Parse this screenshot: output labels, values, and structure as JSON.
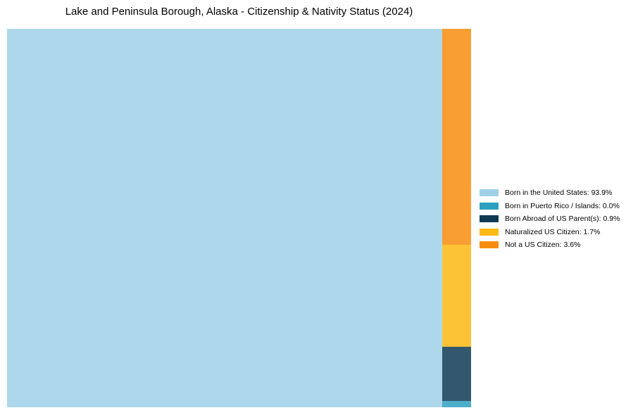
{
  "chart_data": {
    "type": "treemap",
    "title": "Lake and Peninsula Borough, Alaska - Citizenship & Nativity Status (2024)",
    "unit": "%",
    "legend_position": "right",
    "background_color": "#ffffff",
    "items": [
      {
        "label": "Born in the United States",
        "value": 93.9,
        "color": "#9FD0E8",
        "legend_label": "Born in the United States: 93.9%"
      },
      {
        "label": "Born in Puerto Rico / Islands",
        "value": 0.0,
        "color": "#2EA0BF",
        "legend_label": "Born in Puerto Rico / Islands: 0.0%"
      },
      {
        "label": "Born Abroad of US Parent(s)",
        "value": 0.9,
        "color": "#0F3A53",
        "legend_label": "Born Abroad of US Parent(s): 0.9%"
      },
      {
        "label": "Naturalized US Citizen",
        "value": 1.7,
        "color": "#FDB913",
        "legend_label": "Naturalized US Citizen: 1.7%"
      },
      {
        "label": "Not a US Citizen",
        "value": 3.6,
        "color": "#F78D0E",
        "legend_label": "Not a US Citizen: 3.6%"
      }
    ]
  }
}
